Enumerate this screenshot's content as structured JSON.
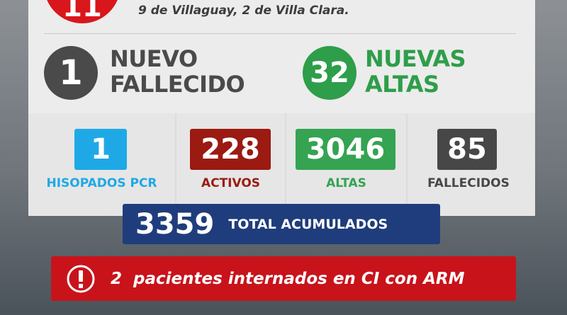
{
  "header": {
    "count_partial": "11",
    "detail": "9 de Villaguay, 2 de Villa Clara."
  },
  "highlights": [
    {
      "number": "1",
      "line1": "NUEVO",
      "line2": "FALLECIDO",
      "color": "#4a4a4a"
    },
    {
      "number": "32",
      "line1": "NUEVAS",
      "line2": "ALTAS",
      "color": "#2e9e4a"
    }
  ],
  "stats": [
    {
      "value": "1",
      "label": "HISOPADOS PCR",
      "color": "#1ea9e6"
    },
    {
      "value": "228",
      "label": "ACTIVOS",
      "color": "#9b1a12"
    },
    {
      "value": "3046",
      "label": "ALTAS",
      "color": "#35a352"
    },
    {
      "value": "85",
      "label": "FALLECIDOS",
      "color": "#474747"
    }
  ],
  "total": {
    "value": "3359",
    "label": "TOTAL ACUMULADOS"
  },
  "alert": {
    "icon": "exclamation-circle-icon",
    "text": "2  pacientes internados en CI con ARM"
  }
}
